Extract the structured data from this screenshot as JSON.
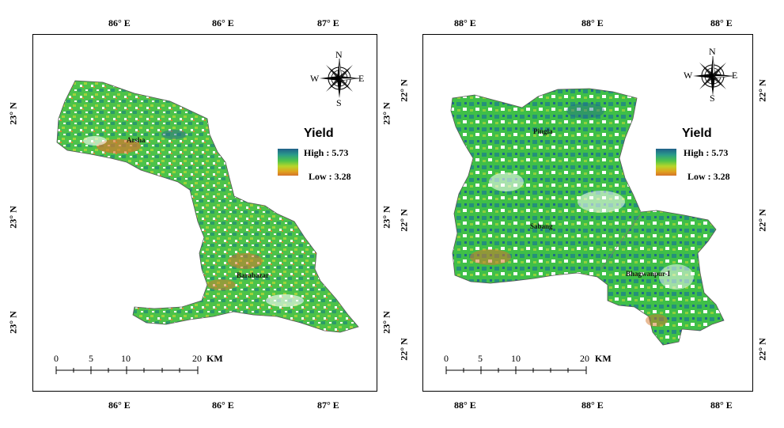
{
  "left_map": {
    "top_ticks": [
      "86° E",
      "86° E",
      "87° E"
    ],
    "bottom_ticks": [
      "86° E",
      "86° E",
      "87° E"
    ],
    "left_ticks": [
      "23° N",
      "23° N",
      "23° N"
    ],
    "right_ticks": [
      "23° N",
      "23° N",
      "23° N"
    ],
    "legend": {
      "title": "Yield",
      "high": "High : 5.73",
      "low": "Low : 3.28"
    },
    "places": [
      "Arsha",
      "Barabazar"
    ],
    "scale": {
      "labels": [
        "0",
        "5",
        "10",
        "20"
      ],
      "unit": "KM"
    },
    "compass": {
      "n": "N",
      "s": "S",
      "e": "E",
      "w": "W"
    }
  },
  "right_map": {
    "top_ticks": [
      "88° E",
      "88° E",
      "88° E"
    ],
    "bottom_ticks": [
      "88° E",
      "88° E",
      "88° E"
    ],
    "left_ticks": [
      "22° N",
      "22° N",
      "22° N"
    ],
    "right_ticks": [
      "22° N",
      "22° N",
      "22° N"
    ],
    "legend": {
      "title": "Yield",
      "high": "High : 5.73",
      "low": "Low : 3.28"
    },
    "places": [
      "Pingla",
      "Sabang",
      "Bhagwanpur-I"
    ],
    "scale": {
      "labels": [
        "0",
        "5",
        "10",
        "20"
      ],
      "unit": "KM"
    },
    "compass": {
      "n": "N",
      "s": "S",
      "e": "E",
      "w": "W"
    }
  },
  "colors": {
    "high": "#1f5f88",
    "mid": "#4fc44a",
    "low": "#d4732c"
  }
}
